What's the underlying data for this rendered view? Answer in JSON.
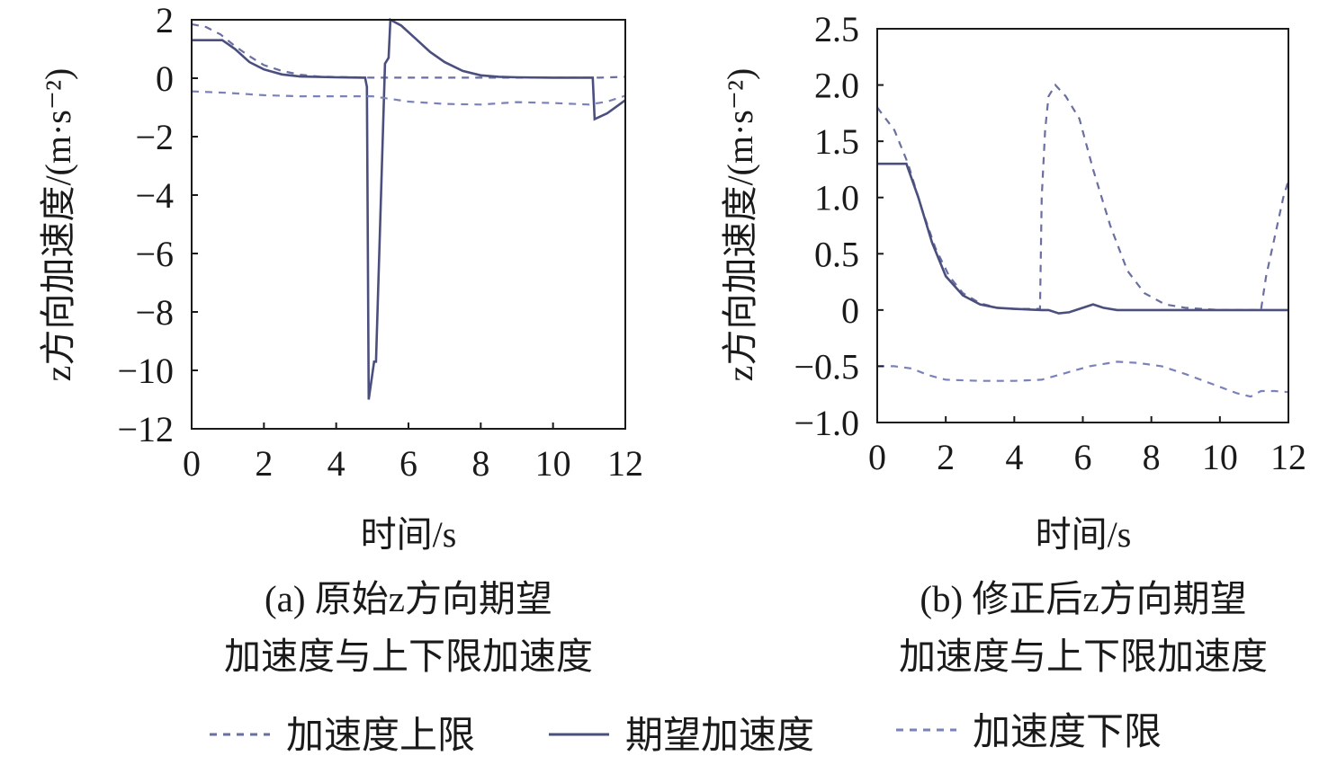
{
  "colors": {
    "upper": "#6a6fa0",
    "desired": "#4b4f7e",
    "lower": "#7a82b8",
    "axis": "#1a1a1a"
  },
  "legend": {
    "upper": "加速度上限",
    "desired": "期望加速度",
    "lower": "加速度下限"
  },
  "chart_data": [
    {
      "type": "line",
      "caption_line1": "(a) 原始z方向期望",
      "caption_line2": "加速度与上下限加速度",
      "xlabel": "时间/s",
      "ylabel": "z方向加速度/(m·s⁻²)",
      "xlim": [
        0,
        12
      ],
      "ylim": [
        -12,
        2
      ],
      "xticks": [
        "0",
        "2",
        "4",
        "6",
        "8",
        "10",
        "12"
      ],
      "yticks": [
        "2",
        "0",
        "−2",
        "−4",
        "−6",
        "−8",
        "−10",
        "−12"
      ],
      "ytick_values": [
        2,
        0,
        -2,
        -4,
        -6,
        -8,
        -10,
        -12
      ],
      "xtick_values": [
        0,
        2,
        4,
        6,
        8,
        10,
        12
      ],
      "series": [
        {
          "name": "加速度上限",
          "key": "upper",
          "style": "dashed",
          "points": [
            [
              0,
              1.85
            ],
            [
              0.4,
              1.75
            ],
            [
              0.8,
              1.5
            ],
            [
              1.2,
              1.1
            ],
            [
              1.6,
              0.75
            ],
            [
              2.0,
              0.45
            ],
            [
              2.5,
              0.25
            ],
            [
              3.0,
              0.12
            ],
            [
              3.5,
              0.06
            ],
            [
              4.0,
              0.04
            ],
            [
              4.5,
              0.03
            ],
            [
              5.0,
              0.02
            ],
            [
              5.5,
              0.02
            ],
            [
              6.0,
              0.02
            ],
            [
              7.0,
              0.02
            ],
            [
              8.0,
              0.02
            ],
            [
              9.0,
              0.02
            ],
            [
              10.0,
              0.02
            ],
            [
              11.0,
              0.02
            ],
            [
              11.3,
              0.02
            ],
            [
              12.0,
              0.05
            ]
          ]
        },
        {
          "name": "期望加速度",
          "key": "desired",
          "style": "solid",
          "points": [
            [
              0,
              1.3
            ],
            [
              0.85,
              1.3
            ],
            [
              1.2,
              1.0
            ],
            [
              1.6,
              0.55
            ],
            [
              2.0,
              0.3
            ],
            [
              2.5,
              0.13
            ],
            [
              3.0,
              0.06
            ],
            [
              4.0,
              0.03
            ],
            [
              4.8,
              0.02
            ],
            [
              4.85,
              -0.3
            ],
            [
              4.9,
              -11.0
            ],
            [
              5.05,
              -9.7
            ],
            [
              5.1,
              -9.7
            ],
            [
              5.35,
              0.5
            ],
            [
              5.45,
              0.7
            ],
            [
              5.5,
              2.0
            ],
            [
              5.8,
              1.8
            ],
            [
              6.2,
              1.35
            ],
            [
              6.6,
              0.9
            ],
            [
              7.0,
              0.55
            ],
            [
              7.5,
              0.25
            ],
            [
              8.0,
              0.1
            ],
            [
              8.5,
              0.05
            ],
            [
              9.0,
              0.03
            ],
            [
              10.0,
              0.02
            ],
            [
              11.1,
              0.02
            ],
            [
              11.15,
              -1.4
            ],
            [
              11.5,
              -1.2
            ],
            [
              12.0,
              -0.75
            ]
          ]
        },
        {
          "name": "加速度下限",
          "key": "lower",
          "style": "dashed",
          "points": [
            [
              0,
              -0.45
            ],
            [
              1.0,
              -0.5
            ],
            [
              2.0,
              -0.58
            ],
            [
              3.0,
              -0.62
            ],
            [
              4.0,
              -0.62
            ],
            [
              5.0,
              -0.62
            ],
            [
              6.0,
              -0.8
            ],
            [
              7.0,
              -0.88
            ],
            [
              8.0,
              -0.9
            ],
            [
              9.0,
              -0.82
            ],
            [
              10.0,
              -0.85
            ],
            [
              11.0,
              -0.9
            ],
            [
              11.5,
              -0.8
            ],
            [
              12.0,
              -0.6
            ]
          ]
        }
      ]
    },
    {
      "type": "line",
      "caption_line1": "(b) 修正后z方向期望",
      "caption_line2": "加速度与上下限加速度",
      "xlabel": "时间/s",
      "ylabel": "z方向加速度/(m·s⁻²)",
      "xlim": [
        0,
        12
      ],
      "ylim": [
        -1.0,
        2.5
      ],
      "xticks": [
        "0",
        "2",
        "4",
        "6",
        "8",
        "10",
        "12"
      ],
      "yticks": [
        "2.5",
        "2.0",
        "1.5",
        "1.0",
        "0.5",
        "0",
        "−0.5",
        "−1.0"
      ],
      "ytick_values": [
        2.5,
        2.0,
        1.5,
        1.0,
        0.5,
        0,
        -0.5,
        -1.0
      ],
      "xtick_values": [
        0,
        2,
        4,
        6,
        8,
        10,
        12
      ],
      "series": [
        {
          "name": "加速度上限",
          "key": "upper",
          "style": "dashed",
          "points": [
            [
              0,
              1.8
            ],
            [
              0.5,
              1.6
            ],
            [
              0.9,
              1.3
            ],
            [
              1.3,
              0.9
            ],
            [
              1.7,
              0.55
            ],
            [
              2.1,
              0.3
            ],
            [
              2.5,
              0.15
            ],
            [
              3.0,
              0.06
            ],
            [
              3.5,
              0.02
            ],
            [
              4.0,
              0.01
            ],
            [
              4.75,
              0.01
            ],
            [
              4.8,
              1.0
            ],
            [
              4.9,
              1.6
            ],
            [
              5.0,
              1.9
            ],
            [
              5.2,
              2.0
            ],
            [
              5.5,
              1.9
            ],
            [
              5.9,
              1.7
            ],
            [
              6.3,
              1.25
            ],
            [
              6.8,
              0.75
            ],
            [
              7.3,
              0.35
            ],
            [
              7.8,
              0.15
            ],
            [
              8.4,
              0.05
            ],
            [
              9.0,
              0.02
            ],
            [
              10.0,
              0.0
            ],
            [
              11.2,
              0.0
            ],
            [
              11.35,
              0.3
            ],
            [
              11.6,
              0.65
            ],
            [
              11.85,
              1.0
            ],
            [
              12.0,
              1.15
            ]
          ]
        },
        {
          "name": "期望加速度",
          "key": "desired",
          "style": "solid",
          "points": [
            [
              0,
              1.3
            ],
            [
              0.85,
              1.3
            ],
            [
              1.2,
              1.0
            ],
            [
              1.6,
              0.6
            ],
            [
              2.0,
              0.3
            ],
            [
              2.5,
              0.13
            ],
            [
              3.0,
              0.05
            ],
            [
              3.5,
              0.02
            ],
            [
              4.0,
              0.01
            ],
            [
              4.8,
              0.0
            ],
            [
              5.0,
              0.0
            ],
            [
              5.3,
              -0.03
            ],
            [
              5.6,
              -0.02
            ],
            [
              6.0,
              0.02
            ],
            [
              6.3,
              0.05
            ],
            [
              6.6,
              0.02
            ],
            [
              7.0,
              0.0
            ],
            [
              8.0,
              0.0
            ],
            [
              10.0,
              0.0
            ],
            [
              12.0,
              0.0
            ]
          ]
        },
        {
          "name": "加速度下限",
          "key": "lower",
          "style": "dashed",
          "points": [
            [
              0,
              -0.5
            ],
            [
              0.5,
              -0.5
            ],
            [
              1.0,
              -0.52
            ],
            [
              1.5,
              -0.58
            ],
            [
              2.0,
              -0.62
            ],
            [
              3.0,
              -0.63
            ],
            [
              4.0,
              -0.63
            ],
            [
              4.8,
              -0.62
            ],
            [
              5.5,
              -0.56
            ],
            [
              6.2,
              -0.5
            ],
            [
              7.0,
              -0.46
            ],
            [
              7.6,
              -0.47
            ],
            [
              8.3,
              -0.5
            ],
            [
              9.0,
              -0.57
            ],
            [
              9.8,
              -0.66
            ],
            [
              10.5,
              -0.74
            ],
            [
              10.9,
              -0.77
            ],
            [
              11.2,
              -0.72
            ],
            [
              11.6,
              -0.72
            ],
            [
              12.0,
              -0.73
            ]
          ]
        }
      ]
    }
  ]
}
